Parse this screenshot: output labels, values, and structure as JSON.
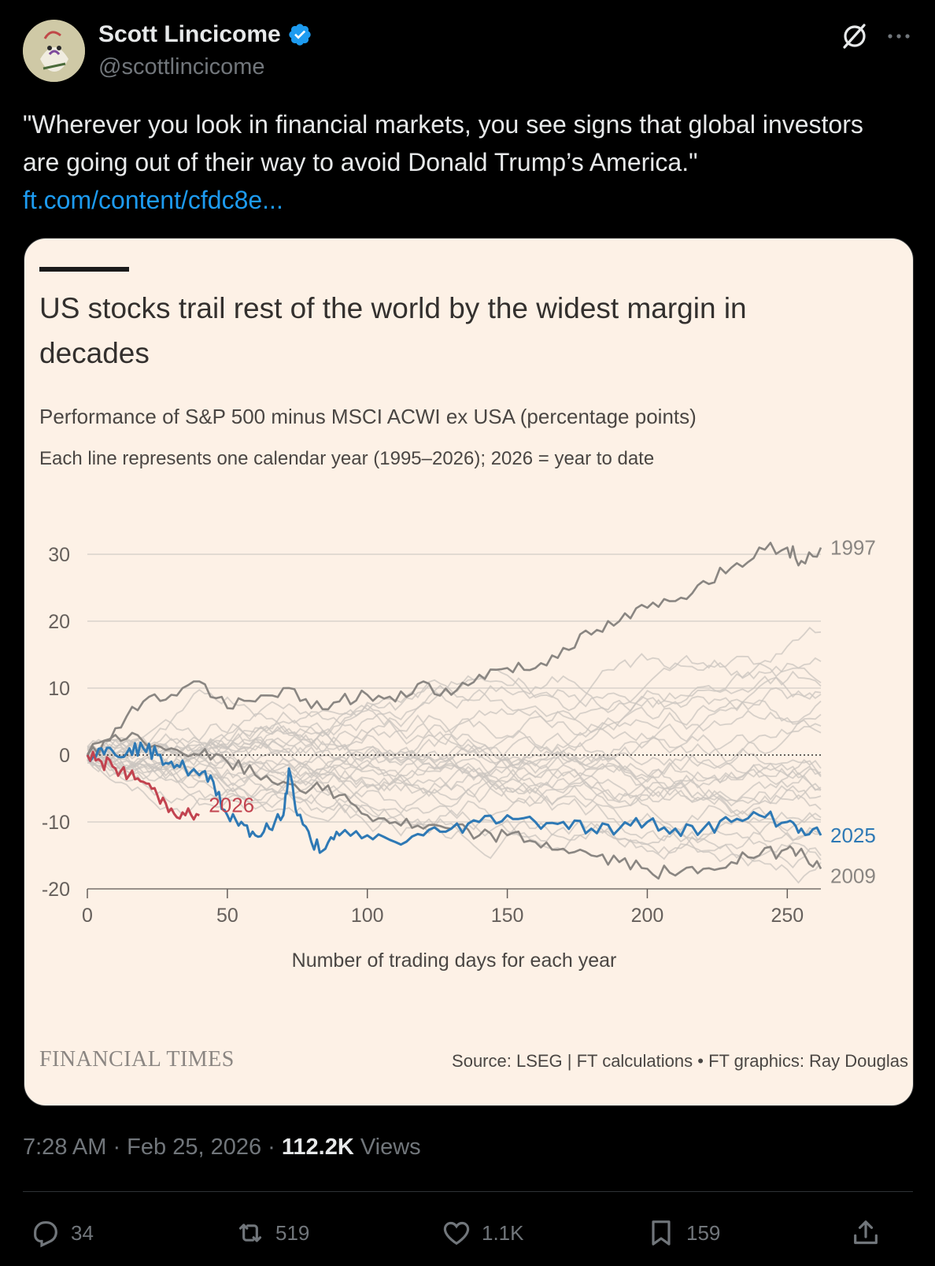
{
  "author": {
    "name": "Scott Lincicome",
    "handle": "@scottlincicome"
  },
  "tweet": {
    "text": "\"Wherever you look in financial markets, you see signs that global investors are going out of their way to avoid Donald Trump’s America.\"",
    "link": "ft.com/content/cfdc8e..."
  },
  "card": {
    "title": "US stocks trail rest of the world by the widest margin in decades",
    "subtitle": "Performance of S&P 500 minus MSCI ACWI ex USA (percentage points)",
    "note": "Each line represents one calendar year (1995–2026); 2026 = year to date",
    "brand": "FINANCIAL TIMES",
    "source": "Source: LSEG | FT calculations • FT graphics: Ray Douglas"
  },
  "chart_data": {
    "type": "line",
    "title": "US stocks trail rest of the world by the widest margin in decades",
    "xlabel": "Number of trading days for each year",
    "ylabel": "Performance of S&P 500 minus MSCI ACWI ex USA (percentage points)",
    "xlim": [
      0,
      262
    ],
    "ylim": [
      -20,
      30
    ],
    "xticks": [
      0,
      50,
      100,
      150,
      200,
      250
    ],
    "yticks": [
      30,
      20,
      10,
      0,
      -10,
      -20
    ],
    "zero_line": "dotted",
    "colors": {
      "background_years": "#c9c4bf",
      "year_1997": "#8a8682",
      "year_2009": "#8a8682",
      "year_2025": "#2e79b5",
      "year_2026": "#c2434f"
    },
    "series": [
      {
        "name": "1997",
        "label": "1997",
        "x": [
          0,
          10,
          20,
          30,
          40,
          50,
          60,
          70,
          80,
          90,
          100,
          110,
          120,
          130,
          140,
          150,
          160,
          170,
          180,
          190,
          200,
          210,
          220,
          230,
          240,
          250,
          255,
          262
        ],
        "values": [
          0,
          4,
          8,
          9,
          11,
          7,
          8,
          10,
          7,
          8,
          9,
          8,
          11,
          9,
          12,
          13,
          13,
          16,
          18,
          20,
          22,
          23,
          26,
          28,
          31,
          31,
          29,
          31
        ]
      },
      {
        "name": "2009",
        "label": "2009",
        "x": [
          0,
          10,
          20,
          30,
          40,
          50,
          60,
          70,
          80,
          90,
          100,
          110,
          120,
          130,
          140,
          150,
          160,
          170,
          180,
          190,
          200,
          210,
          220,
          230,
          240,
          250,
          255,
          262
        ],
        "values": [
          0,
          3,
          2,
          1,
          0,
          -1,
          -3,
          -4,
          -5,
          -6,
          -9,
          -10,
          -11,
          -11,
          -12,
          -12,
          -13,
          -14,
          -15,
          -16,
          -17,
          -18,
          -17,
          -16,
          -15,
          -14,
          -14,
          -17
        ]
      },
      {
        "name": "2025",
        "label": "2025",
        "x": [
          0,
          5,
          10,
          15,
          20,
          25,
          30,
          35,
          40,
          45,
          50,
          55,
          60,
          65,
          70,
          72,
          75,
          80,
          85,
          90,
          100,
          110,
          120,
          130,
          140,
          150,
          160,
          170,
          180,
          190,
          200,
          210,
          220,
          230,
          240,
          250,
          255,
          262
        ],
        "values": [
          0,
          1,
          0,
          1,
          1,
          0,
          -1,
          -2,
          -3,
          -4,
          -9,
          -10,
          -12,
          -11,
          -9,
          -2,
          -9,
          -13,
          -14,
          -12,
          -12,
          -13,
          -12,
          -11,
          -10,
          -9,
          -10,
          -10,
          -11,
          -11,
          -10,
          -11,
          -11,
          -10,
          -9,
          -10,
          -11,
          -12
        ]
      },
      {
        "name": "2026",
        "label": "2026",
        "x": [
          0,
          5,
          10,
          15,
          20,
          25,
          30,
          35,
          40
        ],
        "values": [
          0,
          -1,
          -2,
          -3,
          -4,
          -6,
          -8,
          -9,
          -9
        ]
      }
    ]
  },
  "meta": {
    "time": "7:28 AM · Feb 25, 2026 · ",
    "views_count": "112.2K",
    "views_label": " Views"
  },
  "actions": {
    "replies": "34",
    "reposts": "519",
    "likes": "1.1K",
    "bookmarks": "159"
  }
}
